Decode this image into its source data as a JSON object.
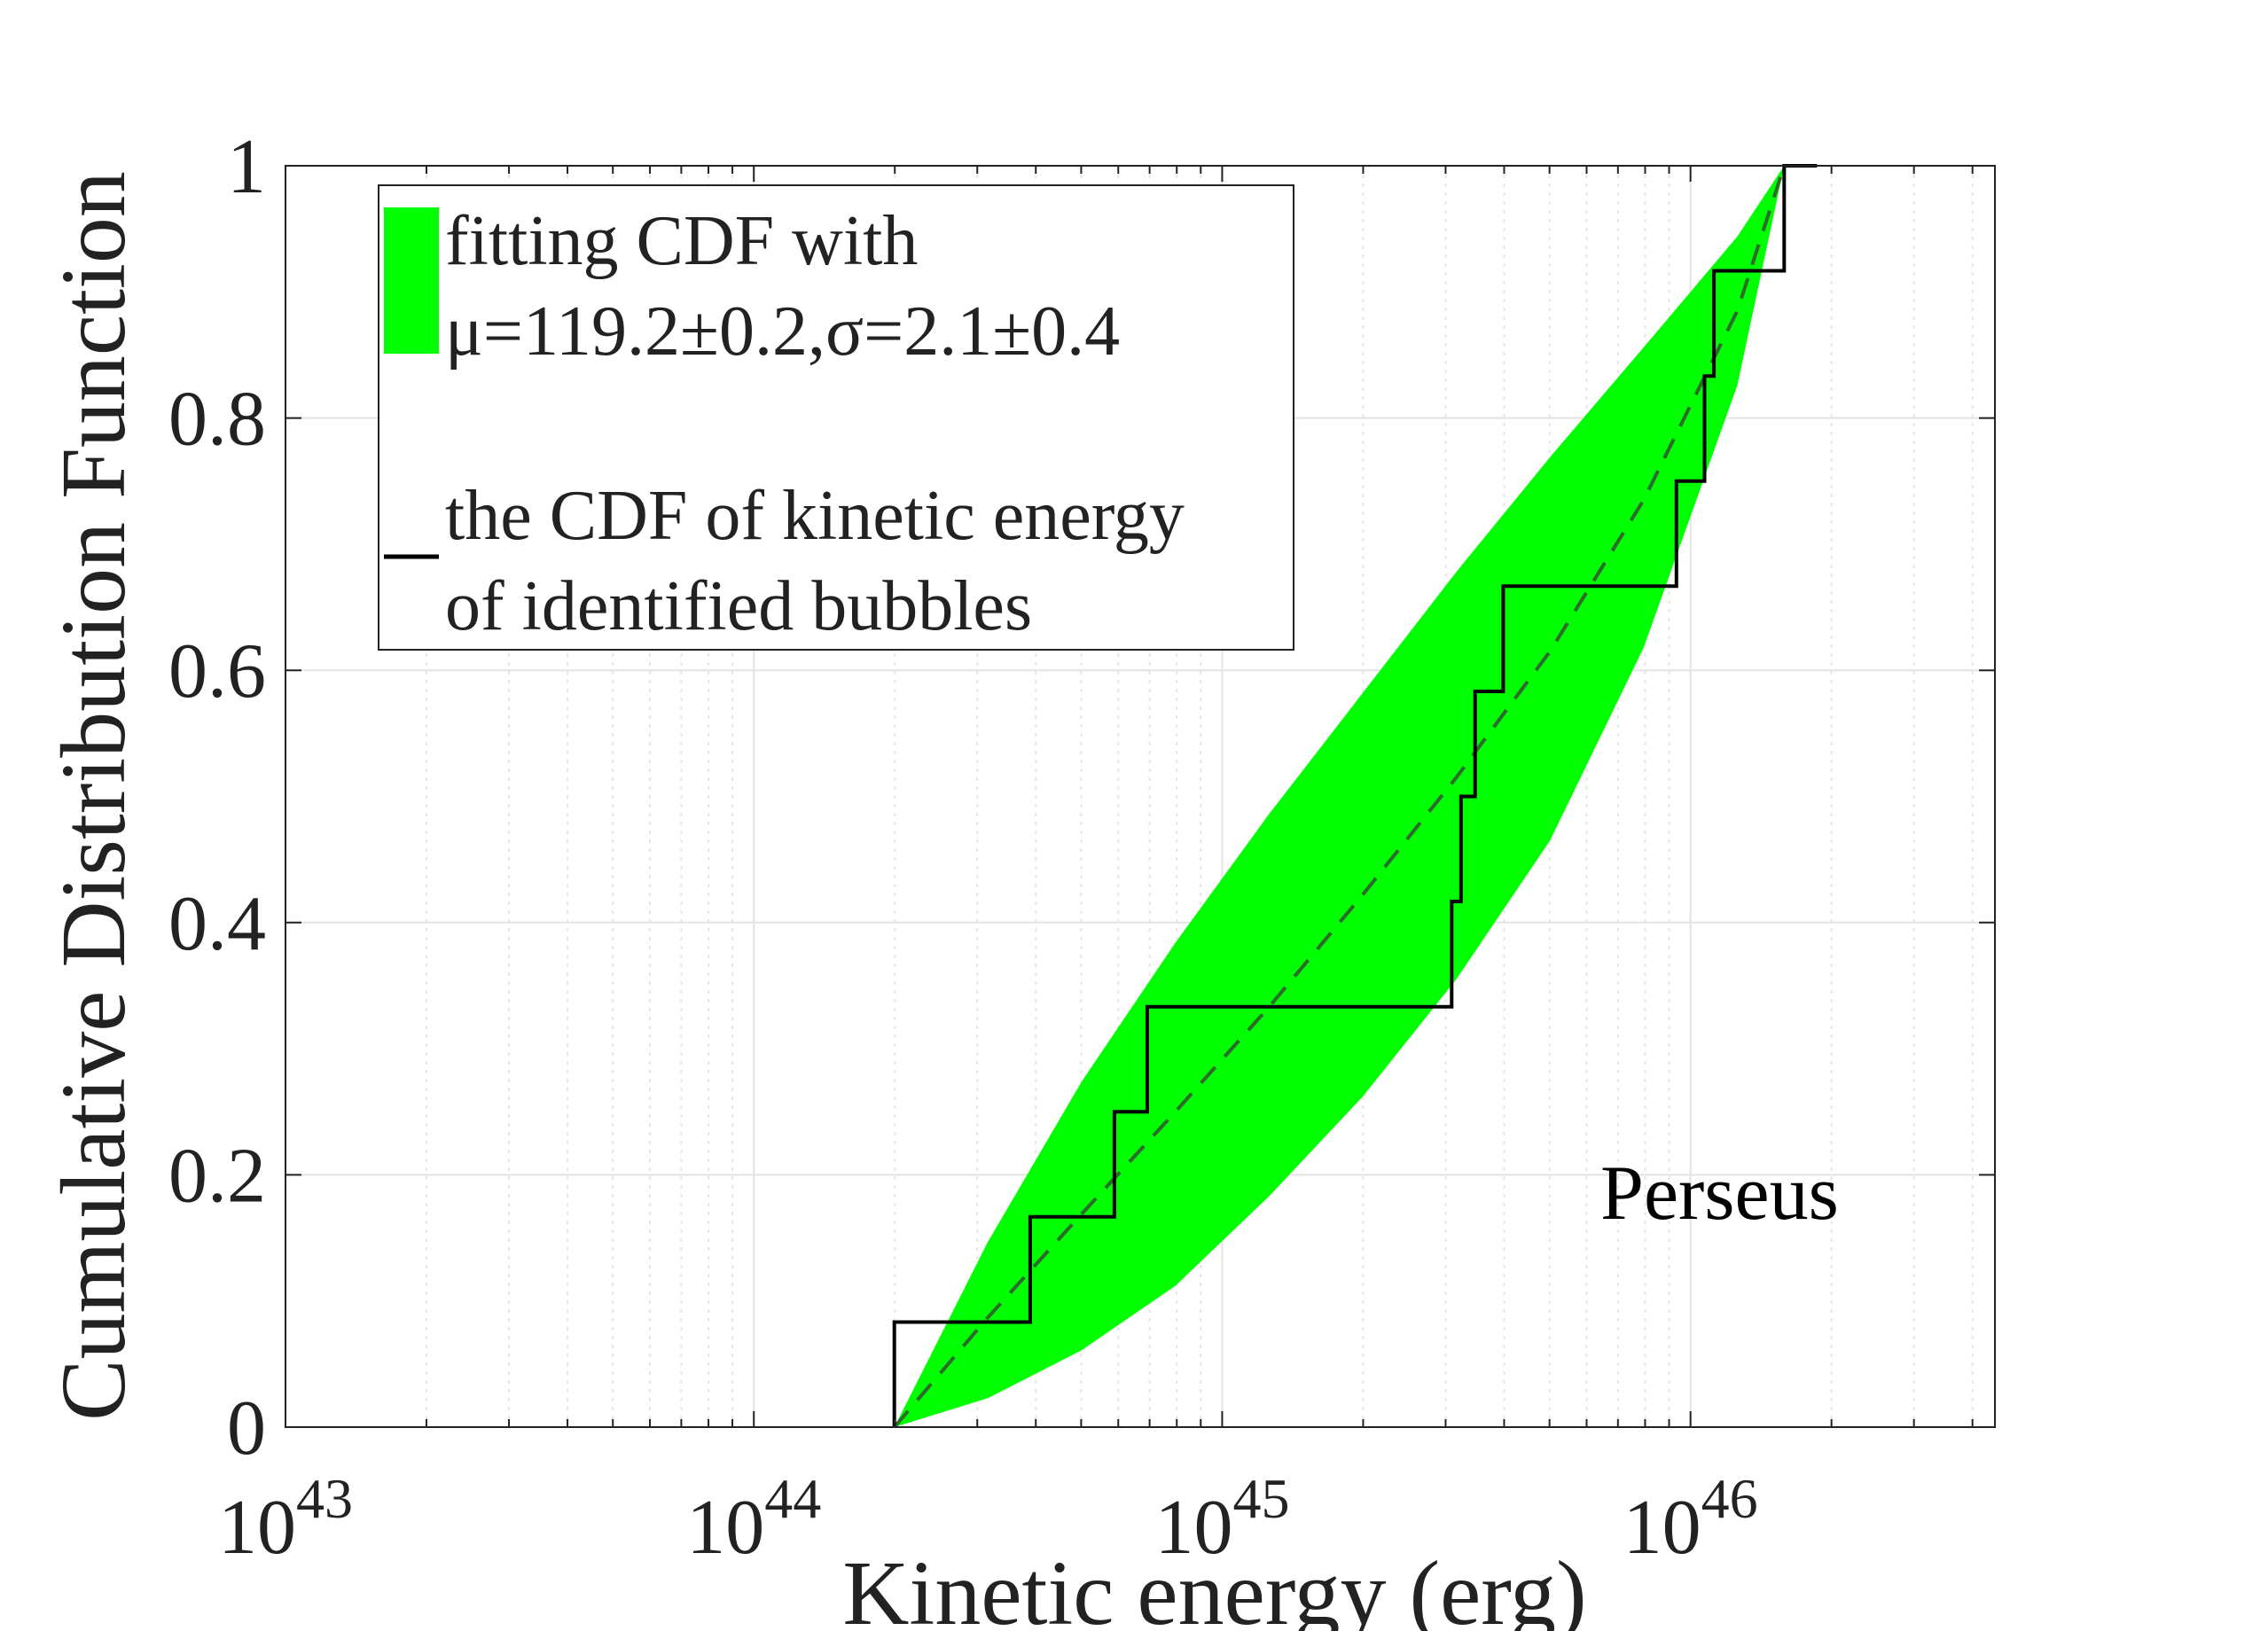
{
  "chart_data": {
    "type": "step+band",
    "title": "",
    "xlabel": "Kinetic energy (erg)",
    "ylabel": "Cumulative Distribution Function",
    "xscale": "log",
    "xlim_log10": [
      43,
      46.65
    ],
    "ylim": [
      0,
      1
    ],
    "x_ticks": [
      {
        "base": "10",
        "exp": "43",
        "log10": 43
      },
      {
        "base": "10",
        "exp": "44",
        "log10": 44
      },
      {
        "base": "10",
        "exp": "45",
        "log10": 45
      },
      {
        "base": "10",
        "exp": "46",
        "log10": 46
      }
    ],
    "y_ticks": [
      "0",
      "0.2",
      "0.4",
      "0.6",
      "0.8",
      "1"
    ],
    "y_tick_values": [
      0,
      0.2,
      0.4,
      0.6,
      0.8,
      1
    ],
    "grid": true,
    "annotation": "Perseus",
    "legend": {
      "position": "top-left",
      "entries": [
        {
          "lines": [
            "fitting CDF with",
            "μ=119.2±0.2,σ=2.1±0.4"
          ],
          "marker": "patch",
          "color": "#00ff00"
        },
        {
          "lines": [
            "the CDF of kinetic energy",
            "of identified bubbles"
          ],
          "marker": "line",
          "color": "#000000"
        }
      ]
    },
    "band": {
      "name": "fitting CDF band",
      "color": "#00ff00",
      "log10_x": [
        44.3,
        44.5,
        44.7,
        44.9,
        45.1,
        45.3,
        45.5,
        45.7,
        45.9,
        46.1,
        46.2
      ],
      "lower": [
        0.0,
        0.023,
        0.061,
        0.112,
        0.183,
        0.262,
        0.355,
        0.465,
        0.618,
        0.826,
        1.0
      ],
      "upper": [
        0.0,
        0.147,
        0.274,
        0.384,
        0.486,
        0.582,
        0.678,
        0.769,
        0.856,
        0.944,
        1.0
      ]
    },
    "series": [
      {
        "name": "fitted CDF (dashed)",
        "style": "dashed",
        "color": "#2d6b2d",
        "log10_x": [
          44.3,
          44.5,
          44.7,
          44.9,
          45.1,
          45.3,
          45.5,
          45.7,
          45.9,
          46.1,
          46.2
        ],
        "values": [
          0.0,
          0.087,
          0.169,
          0.25,
          0.333,
          0.422,
          0.515,
          0.615,
          0.735,
          0.885,
          1.0
        ]
      },
      {
        "name": "empirical CDF of identified bubbles",
        "style": "step",
        "color": "#000000",
        "steps_log10_x": [
          44.3,
          44.59,
          44.77,
          44.84,
          45.49,
          45.51,
          45.54,
          45.6,
          45.97,
          46.03,
          46.05,
          46.2,
          46.27
        ],
        "steps_y": [
          0.0833,
          0.1667,
          0.25,
          0.3333,
          0.4167,
          0.5,
          0.5833,
          0.6667,
          0.75,
          0.8333,
          0.9167,
          1.0,
          1.0
        ]
      }
    ]
  }
}
